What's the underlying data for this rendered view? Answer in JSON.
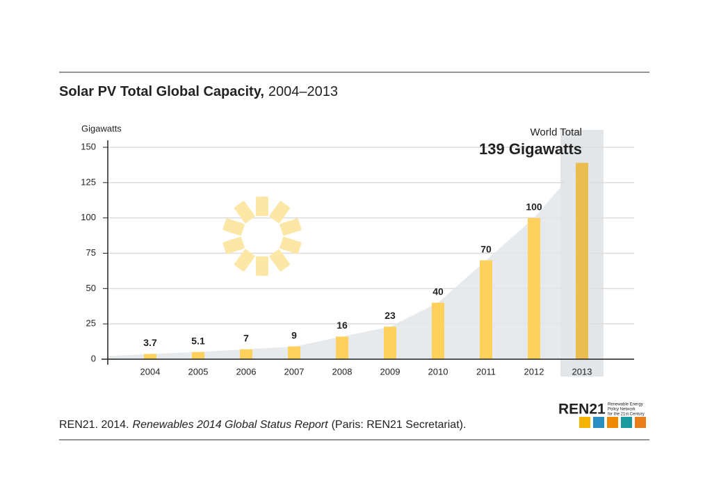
{
  "chart_data": {
    "type": "bar",
    "title": "Solar PV Total Global Capacity,",
    "subtitle": "2004–2013",
    "y_label": "Gigawatts",
    "annotation": {
      "label": "World Total",
      "value_text": "139 Gigawatts"
    },
    "categories": [
      "2004",
      "2005",
      "2006",
      "2007",
      "2008",
      "2009",
      "2010",
      "2011",
      "2012",
      "2013"
    ],
    "values": [
      3.7,
      5.1,
      7,
      9,
      16,
      23,
      40,
      70,
      100,
      139
    ],
    "color": "#fdd15c",
    "area_color": "#e3e6e9",
    "ylim": [
      0,
      150
    ],
    "yticks": [
      0,
      25,
      50,
      75,
      100,
      125,
      150
    ],
    "grid": true
  },
  "source": {
    "prefix": "REN21. 2014.",
    "title": "Renewables 2014 Global Status Report",
    "suffix": "(Paris: REN21 Secretariat)."
  },
  "logo": {
    "name": "REN21",
    "tagline": [
      "Renewable Energy",
      "Policy Network",
      "for the 21st Century"
    ]
  }
}
